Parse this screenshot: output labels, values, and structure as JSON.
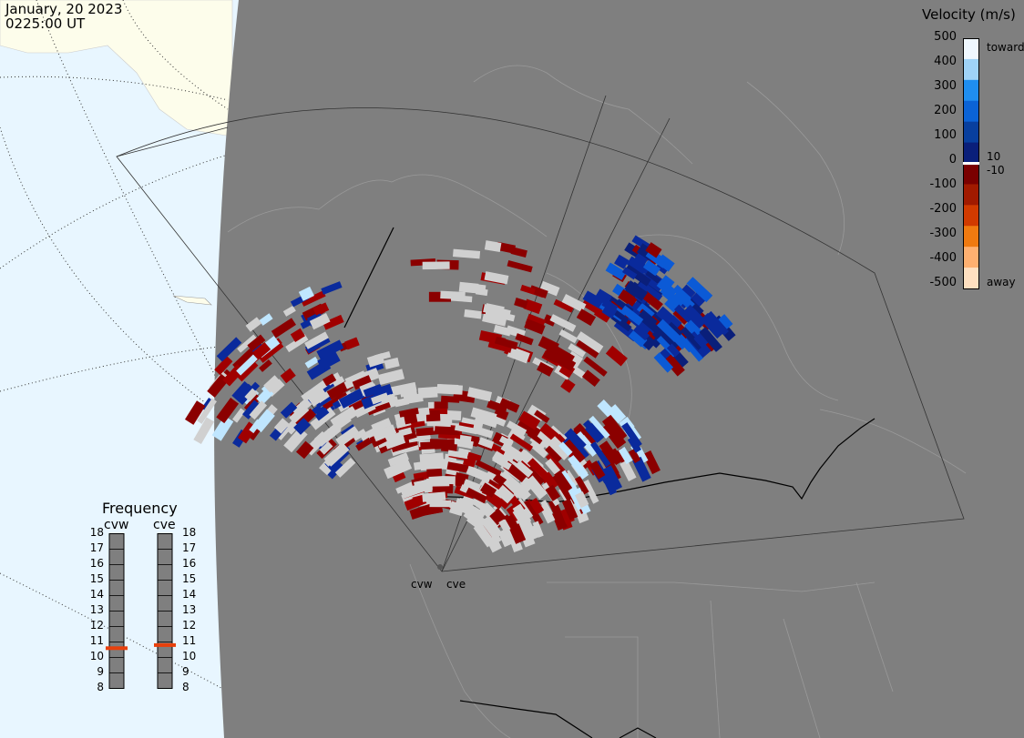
{
  "header": {
    "date": "January, 20 2023",
    "time": "0225:00 UT"
  },
  "colorbar": {
    "title": "Velocity (m/s)",
    "ticks": [
      "500",
      "400",
      "300",
      "200",
      "100",
      "0",
      "-100",
      "-200",
      "-300",
      "-400",
      "-500"
    ],
    "toward_label": "toward",
    "away_label": "away",
    "pos_threshold": "10",
    "neg_threshold": "-10",
    "colors": [
      "#f0f8ff",
      "#9fd3f7",
      "#1f8ef0",
      "#0b63d6",
      "#083f9e",
      "#0a1f7a",
      "#7a0000",
      "#a11a00",
      "#d13a00",
      "#f07a10",
      "#ffb070",
      "#ffe0c0"
    ]
  },
  "frequency": {
    "title": "Frequency",
    "radars": [
      "cvw",
      "cve"
    ],
    "scale": [
      "18",
      "17",
      "16",
      "15",
      "14",
      "13",
      "12",
      "11",
      "10",
      "9",
      "8"
    ],
    "current_mhz": {
      "cvw": 10.6,
      "cve": 10.8
    }
  },
  "radar_labels": [
    "cvw",
    "cve"
  ],
  "colors": {
    "outside_fov": "#7f7f7f",
    "ocean": "#e8f6ff",
    "land_unshaded": "#fdfdeb",
    "ground_scatter": "#d0d0d0",
    "frequency_marker": "#e8400c"
  }
}
